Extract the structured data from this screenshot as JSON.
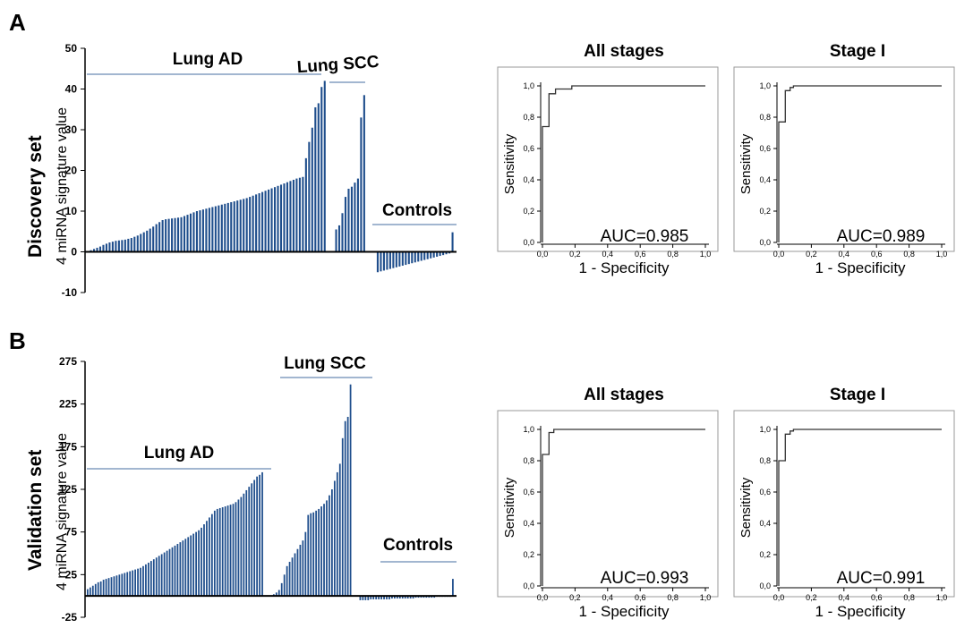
{
  "figure": {
    "panels": [
      {
        "letter": "A",
        "set_label": "Discovery set",
        "y_title": "4 miRNA signature value"
      },
      {
        "letter": "B",
        "set_label": "Validation set",
        "y_title": "4 miRNA signature value"
      }
    ]
  },
  "chart_data": [
    {
      "type": "bar",
      "panel": "A",
      "ylabel": "4 miRNA signature value",
      "ylim": [
        -10,
        50
      ],
      "yticks": [
        -10,
        0,
        10,
        20,
        30,
        40,
        50
      ],
      "groups": [
        {
          "name": "Lung AD",
          "values": [
            0.2,
            0.4,
            0.7,
            1.0,
            1.3,
            1.7,
            2.0,
            2.3,
            2.5,
            2.7,
            2.8,
            2.9,
            3.0,
            3.2,
            3.4,
            3.7,
            4.0,
            4.4,
            4.8,
            5.2,
            5.7,
            6.2,
            6.8,
            7.3,
            7.8,
            8.0,
            8.1,
            8.2,
            8.3,
            8.4,
            8.5,
            8.8,
            9.1,
            9.4,
            9.7,
            10.0,
            10.2,
            10.4,
            10.6,
            10.8,
            11.0,
            11.2,
            11.4,
            11.6,
            11.8,
            12.0,
            12.2,
            12.4,
            12.6,
            12.8,
            13.0,
            13.2,
            13.5,
            13.8,
            14.1,
            14.4,
            14.7,
            15.0,
            15.3,
            15.6,
            15.9,
            16.2,
            16.5,
            16.8,
            17.1,
            17.4,
            17.7,
            18.0,
            18.2,
            18.4,
            23.0,
            27.0,
            30.5,
            35.5,
            36.5,
            40.5,
            42.0
          ]
        },
        {
          "name": "Lung SCC",
          "values": [
            5.5,
            6.5,
            9.5,
            13.5,
            15.5,
            16.0,
            17.0,
            18.0,
            33.0,
            38.5
          ]
        },
        {
          "name": "Controls",
          "values": [
            -5.0,
            -4.8,
            -4.6,
            -4.4,
            -4.2,
            -4.0,
            -3.8,
            -3.6,
            -3.4,
            -3.2,
            -3.0,
            -2.8,
            -2.6,
            -2.4,
            -2.2,
            -2.0,
            -1.8,
            -1.6,
            -1.4,
            -1.2,
            -1.0,
            -0.8,
            -0.6,
            -0.4,
            4.8
          ]
        }
      ]
    },
    {
      "type": "line",
      "panel": "A",
      "title": "All stages",
      "xlabel": "1 - Specificity",
      "ylabel": "Sensitivity",
      "xlim": [
        0,
        1
      ],
      "ylim": [
        0,
        1
      ],
      "ticks": [
        "0,0",
        "0,2",
        "0,4",
        "0,6",
        "0,8",
        "1,0"
      ],
      "curve": [
        [
          0,
          0
        ],
        [
          0,
          0.74
        ],
        [
          0.04,
          0.74
        ],
        [
          0.04,
          0.95
        ],
        [
          0.08,
          0.95
        ],
        [
          0.08,
          0.98
        ],
        [
          0.18,
          0.98
        ],
        [
          0.18,
          1.0
        ],
        [
          1.0,
          1.0
        ]
      ],
      "annotation": "AUC=0.985"
    },
    {
      "type": "line",
      "panel": "A",
      "title": "Stage I",
      "xlabel": "1 - Specificity",
      "ylabel": "Sensitivity",
      "xlim": [
        0,
        1
      ],
      "ylim": [
        0,
        1
      ],
      "ticks": [
        "0,0",
        "0,2",
        "0,4",
        "0,6",
        "0,8",
        "1,0"
      ],
      "curve": [
        [
          0,
          0
        ],
        [
          0,
          0.77
        ],
        [
          0.04,
          0.77
        ],
        [
          0.04,
          0.97
        ],
        [
          0.07,
          0.97
        ],
        [
          0.07,
          0.99
        ],
        [
          0.09,
          0.99
        ],
        [
          0.09,
          1.0
        ],
        [
          1.0,
          1.0
        ]
      ],
      "annotation": "AUC=0.989"
    },
    {
      "type": "bar",
      "panel": "B",
      "ylabel": "4 miRNA signature value",
      "ylim": [
        -25,
        275
      ],
      "yticks": [
        -25,
        25,
        75,
        125,
        175,
        225,
        275
      ],
      "groups": [
        {
          "name": "Lung AD",
          "values": [
            8,
            10,
            12,
            14,
            16,
            17,
            19,
            20,
            21,
            22,
            23,
            24,
            25,
            26,
            27,
            28,
            29,
            30,
            31,
            32,
            33,
            35,
            37,
            39,
            41,
            43,
            45,
            47,
            49,
            51,
            53,
            55,
            57,
            59,
            61,
            63,
            65,
            67,
            69,
            71,
            73,
            75,
            77,
            80,
            84,
            88,
            92,
            96,
            100,
            102,
            103,
            104,
            105,
            106,
            107,
            108,
            110,
            113,
            116,
            120,
            124,
            128,
            132,
            136,
            140,
            142,
            145
          ]
        },
        {
          "name": "Lung SCC",
          "values": [
            2,
            4,
            7,
            15,
            25,
            35,
            40,
            45,
            50,
            55,
            60,
            65,
            75,
            95,
            97,
            98,
            100,
            102,
            105,
            108,
            112,
            118,
            125,
            135,
            145,
            155,
            185,
            205,
            210,
            248
          ]
        },
        {
          "name": "Controls",
          "values": [
            -5,
            -5,
            -5,
            -5,
            -4,
            -4,
            -4,
            -4,
            -4,
            -4,
            -4,
            -4,
            -3,
            -3,
            -3,
            -3,
            -3,
            -3,
            -3,
            -3,
            -3,
            -2,
            -2,
            -2,
            -2,
            -2,
            -2,
            -2,
            -2,
            -1,
            -1,
            -1,
            -1,
            -1,
            -1,
            20
          ]
        }
      ]
    },
    {
      "type": "line",
      "panel": "B",
      "title": "All stages",
      "xlabel": "1 - Specificity",
      "ylabel": "Sensitivity",
      "xlim": [
        0,
        1
      ],
      "ylim": [
        0,
        1
      ],
      "ticks": [
        "0,0",
        "0,2",
        "0,4",
        "0,6",
        "0,8",
        "1,0"
      ],
      "curve": [
        [
          0,
          0
        ],
        [
          0,
          0.84
        ],
        [
          0.04,
          0.84
        ],
        [
          0.04,
          0.98
        ],
        [
          0.07,
          0.98
        ],
        [
          0.07,
          1.0
        ],
        [
          1.0,
          1.0
        ]
      ],
      "annotation": "AUC=0.993"
    },
    {
      "type": "line",
      "panel": "B",
      "title": "Stage I",
      "xlabel": "1 - Specificity",
      "ylabel": "Sensitivity",
      "xlim": [
        0,
        1
      ],
      "ylim": [
        0,
        1
      ],
      "ticks": [
        "0,0",
        "0,2",
        "0,4",
        "0,6",
        "0,8",
        "1,0"
      ],
      "curve": [
        [
          0,
          0
        ],
        [
          0,
          0.8
        ],
        [
          0.04,
          0.8
        ],
        [
          0.04,
          0.97
        ],
        [
          0.07,
          0.97
        ],
        [
          0.07,
          0.99
        ],
        [
          0.09,
          0.99
        ],
        [
          0.09,
          1.0
        ],
        [
          1.0,
          1.0
        ]
      ],
      "annotation": "AUC=0.991"
    }
  ],
  "colors": {
    "bar": "#1f4e8c",
    "axis": "#000000",
    "group_line": "#6a8ab5",
    "curve": "#333333",
    "frame": "#9a9a9a"
  }
}
